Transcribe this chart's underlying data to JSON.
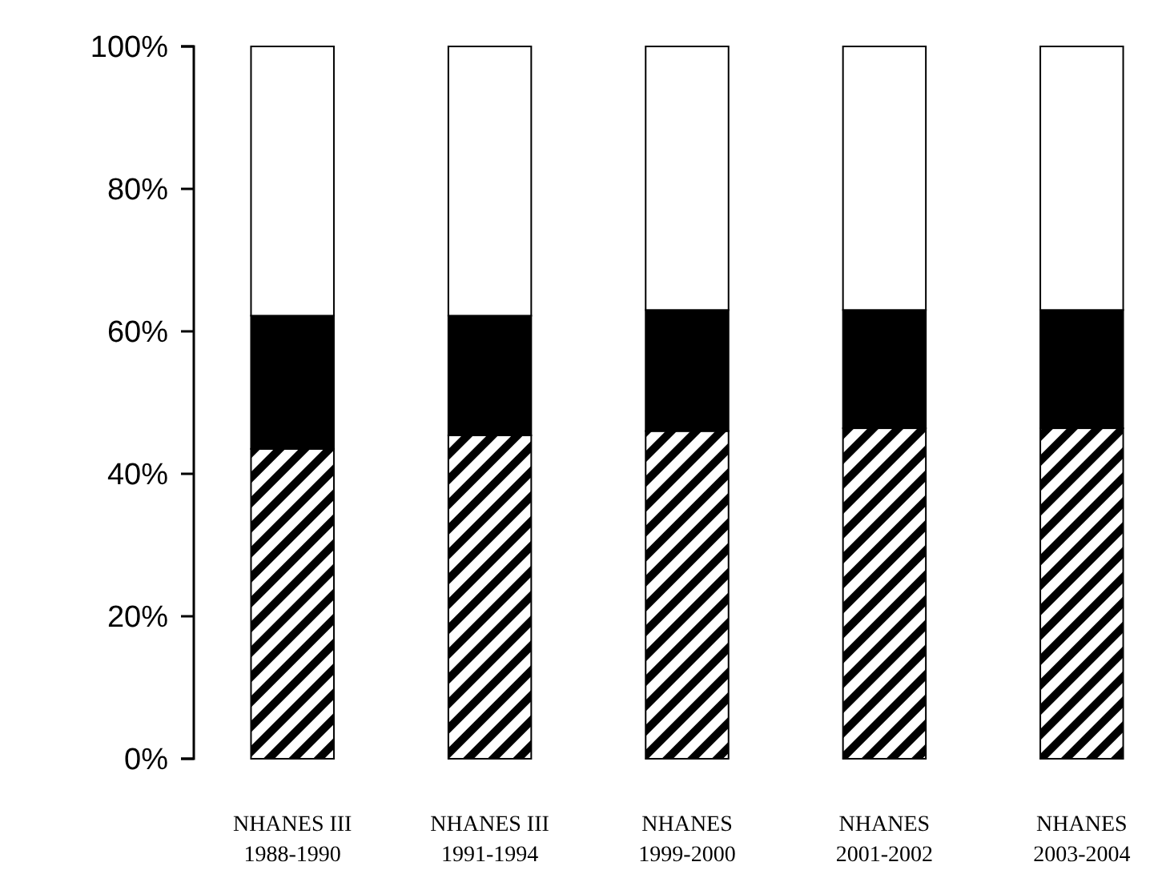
{
  "chart_data": {
    "type": "bar",
    "stacked": true,
    "categories": [
      "NHANES III\n1988-1990",
      "NHANES III\n1991-1994",
      "NHANES\n1999-2000",
      "NHANES\n2001-2002",
      "NHANES\n2003-2004"
    ],
    "series": [
      {
        "color": "#000000",
        "values": [
          43.5,
          45.4,
          46.0,
          46.4,
          46.4
        ]
      },
      {
        "color": "#000000",
        "values": [
          18.7,
          16.8,
          17.0,
          16.6,
          16.6
        ]
      },
      {
        "color": "#ffffff",
        "values": [
          37.8,
          37.8,
          37.0,
          37.0,
          37.0
        ]
      }
    ],
    "ylim": [
      0,
      100
    ],
    "yticks": [
      {
        "value": 0,
        "label": "0%"
      },
      {
        "value": 20,
        "label": "20%"
      },
      {
        "value": 40,
        "label": "40%"
      },
      {
        "value": 60,
        "label": "60%"
      },
      {
        "value": 80,
        "label": "80%"
      },
      {
        "value": 100,
        "label": "100%"
      }
    ],
    "grid": false
  }
}
